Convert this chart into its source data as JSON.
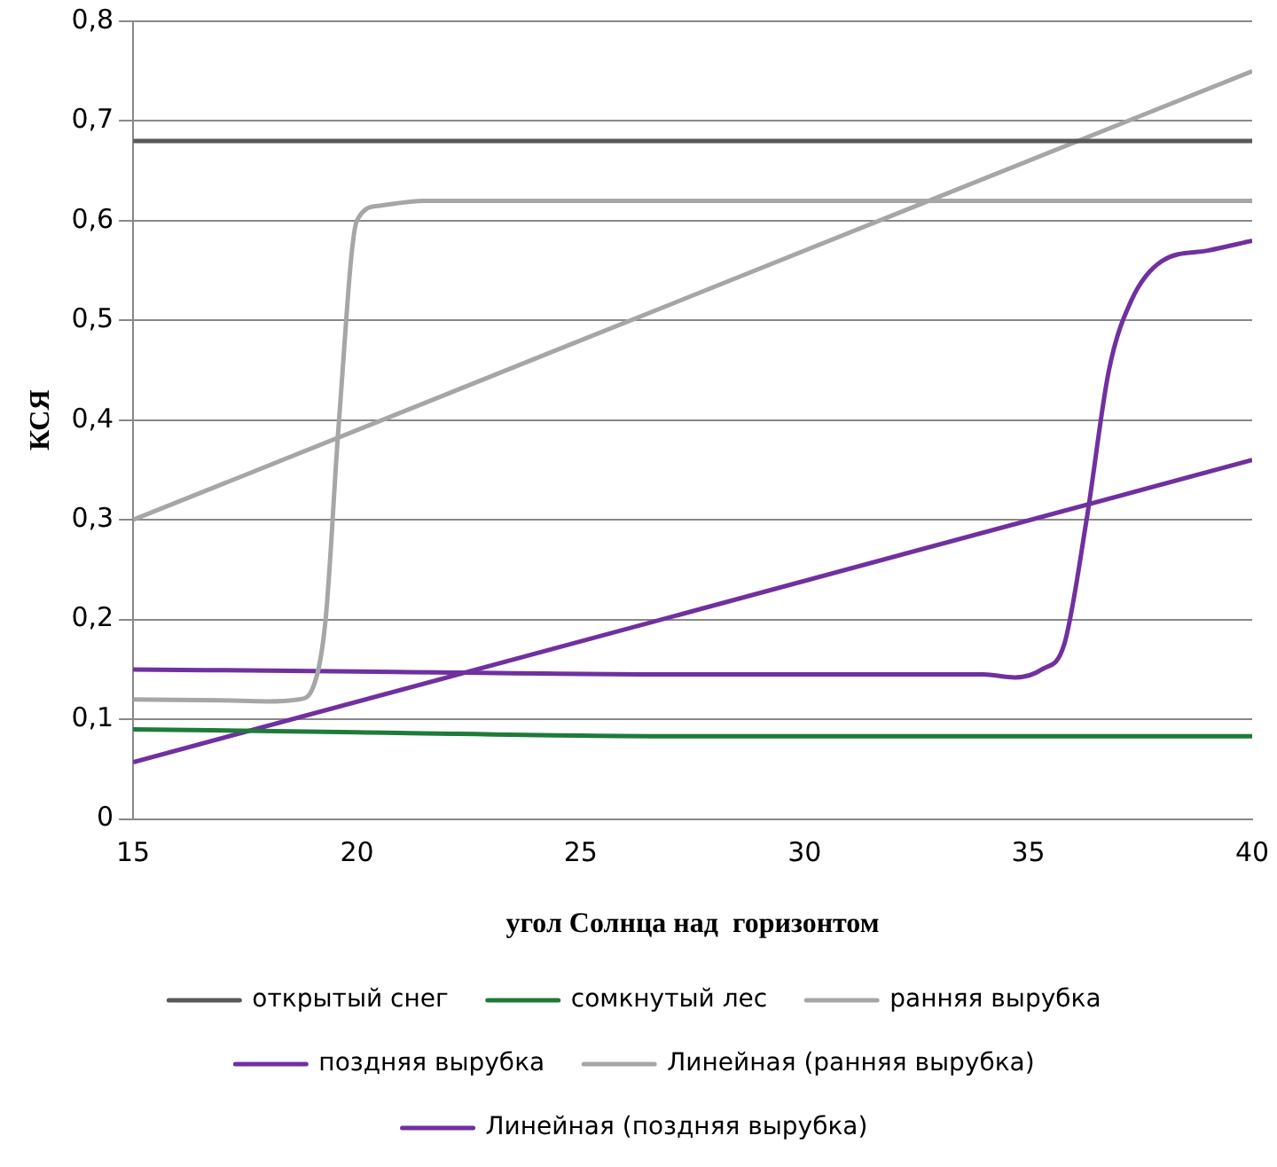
{
  "chart_data": {
    "type": "line",
    "xlabel": "угол Солнца над  горизонтом",
    "ylabel": "КСЯ",
    "xlim": [
      15,
      40
    ],
    "xticks": [
      15,
      20,
      25,
      30,
      35,
      40
    ],
    "ylim": [
      0,
      0.8
    ],
    "yticks": [
      {
        "value": 0,
        "label": "0"
      },
      {
        "value": 0.1,
        "label": "0,1"
      },
      {
        "value": 0.2,
        "label": "0,2"
      },
      {
        "value": 0.3,
        "label": "0,3"
      },
      {
        "value": 0.4,
        "label": "0,4"
      },
      {
        "value": 0.5,
        "label": "0,5"
      },
      {
        "value": 0.6,
        "label": "0,6"
      },
      {
        "value": 0.7,
        "label": "0,7"
      },
      {
        "value": 0.8,
        "label": "0,8"
      }
    ],
    "grid": "y",
    "legend": "bottom",
    "marker": "none",
    "line_style": "solid",
    "series": [
      {
        "name": "открытый снег",
        "color": "#595959",
        "x": [
          15,
          40
        ],
        "values": [
          0.68,
          0.68
        ]
      },
      {
        "name": "сомкнутый лес",
        "color": "#1e7b3a",
        "x": [
          15,
          20,
          27,
          34,
          40
        ],
        "values": [
          0.09,
          0.087,
          0.083,
          0.083,
          0.083
        ]
      },
      {
        "name": "ранняя вырубка",
        "color": "#a6a6a6",
        "x": [
          15,
          17,
          18,
          18.7,
          19,
          19.3,
          19.6,
          20,
          20.5,
          21.5,
          25,
          30,
          35,
          40
        ],
        "values": [
          0.12,
          0.119,
          0.118,
          0.12,
          0.13,
          0.2,
          0.4,
          0.6,
          0.615,
          0.62,
          0.62,
          0.62,
          0.62,
          0.62
        ]
      },
      {
        "name": "поздняя вырубка",
        "color": "#7030a0",
        "x": [
          15,
          20,
          27,
          34,
          34.7,
          35.3,
          35.8,
          36.3,
          36.8,
          37.3,
          38,
          39,
          40
        ],
        "values": [
          0.15,
          0.148,
          0.145,
          0.145,
          0.142,
          0.15,
          0.175,
          0.3,
          0.45,
          0.52,
          0.56,
          0.57,
          0.58
        ]
      },
      {
        "name": "Линейная (ранняя вырубка)",
        "color": "#a6a6a6",
        "x": [
          15,
          40
        ],
        "values": [
          0.3,
          0.75
        ]
      },
      {
        "name": "Линейная (поздняя вырубка)",
        "color": "#7030a0",
        "x": [
          15,
          40
        ],
        "values": [
          0.057,
          0.36
        ]
      }
    ]
  }
}
